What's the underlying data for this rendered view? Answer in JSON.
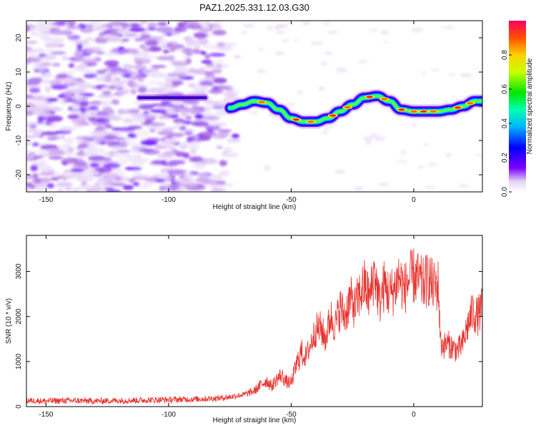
{
  "figure": {
    "title": "PAZ1.2025.331.12.03.G30"
  },
  "chart_data": [
    {
      "type": "heatmap",
      "name": "spectrogram",
      "xlabel": "Height of straight line (km)",
      "ylabel": "Frequency (Hz)",
      "xlim": [
        -158,
        28
      ],
      "ylim": [
        -25,
        25
      ],
      "xticks": [
        -150,
        -100,
        -50,
        0
      ],
      "yticks": [
        -20,
        -10,
        0,
        10,
        20
      ],
      "noise_region_x": [
        -158,
        -70
      ],
      "noise_band_x": [
        -112,
        -85
      ],
      "noise_band_freq": 2.5,
      "signal_path": {
        "x": [
          -75,
          -70,
          -65,
          -60,
          -55,
          -50,
          -45,
          -40,
          -35,
          -30,
          -25,
          -20,
          -15,
          -10,
          -5,
          0,
          5,
          10,
          15,
          20,
          25,
          28
        ],
        "freq": [
          -0.5,
          0.5,
          1.5,
          1.0,
          -1.0,
          -3.5,
          -4.5,
          -4.5,
          -3.5,
          -1.5,
          0.5,
          2.5,
          3.0,
          1.5,
          -1.0,
          -1.5,
          -1.5,
          -1.5,
          -1.0,
          0.0,
          1.5,
          1.5
        ]
      },
      "colorbar": {
        "label": "Normalized spectral amplitude",
        "range": [
          0,
          1
        ],
        "ticks": [
          0.0,
          0.2,
          0.4,
          0.6,
          0.8
        ]
      }
    },
    {
      "type": "line",
      "name": "snr",
      "xlabel": "Height of straight line (km)",
      "ylabel": "SNR (10 * v/v)",
      "xlim": [
        -158,
        28
      ],
      "ylim": [
        0,
        3800
      ],
      "xticks": [
        -150,
        -100,
        -50,
        0
      ],
      "yticks": [
        0,
        1000,
        2000,
        3000
      ],
      "series": [
        {
          "name": "SNR",
          "color": "#e8322d",
          "x": [
            -158,
            -150,
            -140,
            -130,
            -120,
            -110,
            -100,
            -90,
            -80,
            -75,
            -70,
            -65,
            -62,
            -60,
            -58,
            -56,
            -54,
            -52,
            -50,
            -48,
            -46,
            -44,
            -42,
            -40,
            -38,
            -36,
            -34,
            -32,
            -30,
            -28,
            -26,
            -24,
            -22,
            -20,
            -18,
            -16,
            -14,
            -12,
            -10,
            -8,
            -6,
            -4,
            -2,
            0,
            2,
            4,
            6,
            8,
            10,
            11,
            12,
            14,
            16,
            18,
            20,
            22,
            24,
            26,
            28
          ],
          "y": [
            120,
            110,
            120,
            110,
            120,
            130,
            140,
            150,
            170,
            200,
            250,
            350,
            500,
            580,
            450,
            600,
            700,
            550,
            520,
            900,
            1200,
            1100,
            1400,
            1700,
            1750,
            1500,
            2000,
            1800,
            2200,
            2000,
            2400,
            2200,
            2500,
            2700,
            2400,
            3000,
            2300,
            2700,
            2500,
            2600,
            2900,
            2600,
            2800,
            2900,
            2800,
            2700,
            2850,
            2650,
            2700,
            1400,
            1350,
            1400,
            1300,
            1250,
            1400,
            1800,
            2100,
            2000,
            2200
          ]
        }
      ]
    }
  ]
}
